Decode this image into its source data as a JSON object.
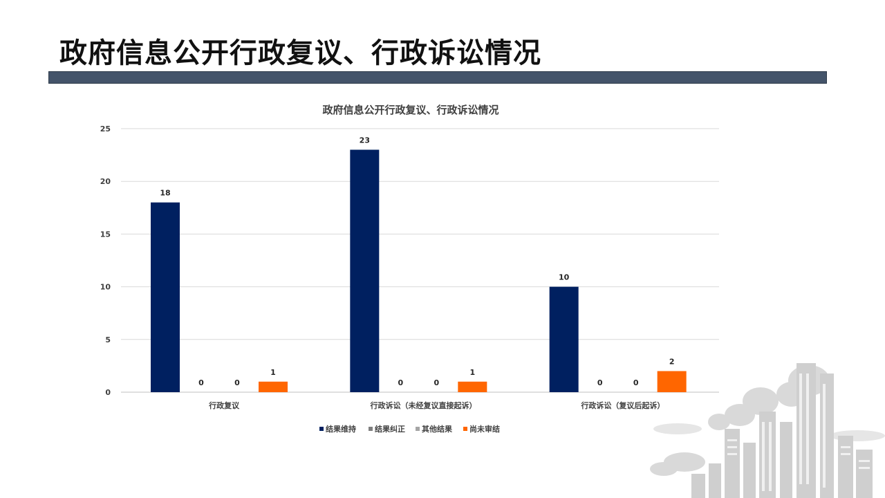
{
  "slide": {
    "title": "政府信息公开行政复议、行政诉讼情况",
    "accent_bar_color": "#44546a"
  },
  "chart_data": {
    "type": "bar",
    "title": "政府信息公开行政复议、行政诉讼情况",
    "categories": [
      "行政复议",
      "行政诉讼（未经复议直接起诉）",
      "行政诉讼（复议后起诉）"
    ],
    "series": [
      {
        "name": "结果维持",
        "values": [
          18,
          23,
          10
        ],
        "color": "#002060"
      },
      {
        "name": "结果纠正",
        "values": [
          0,
          0,
          0
        ],
        "color": "#7f7f7f"
      },
      {
        "name": "其他结果",
        "values": [
          0,
          0,
          0
        ],
        "color": "#a5a5a5"
      },
      {
        "name": "尚未审结",
        "values": [
          1,
          1,
          2
        ],
        "color": "#ff6600"
      }
    ],
    "ylim": [
      0,
      25
    ],
    "yticks": [
      0,
      5,
      10,
      15,
      20,
      25
    ],
    "grid": true,
    "legend": "bottom",
    "data_labels": true
  }
}
